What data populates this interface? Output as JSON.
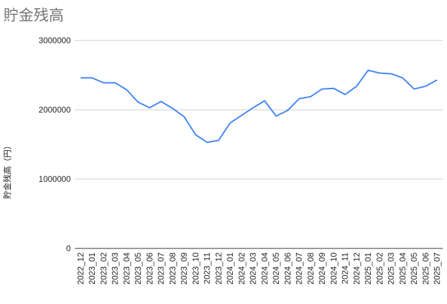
{
  "chart_data": {
    "type": "line",
    "title": "貯金残高",
    "y_label": "貯金残高（円）",
    "categories": [
      "2022_12",
      "2023_01",
      "2023_02",
      "2023_03",
      "2023_04",
      "2023_05",
      "2023_06",
      "2023_07",
      "2023_08",
      "2023_09",
      "2023_10",
      "2023_11",
      "2023_12",
      "2024_01",
      "2024_02",
      "2024_03",
      "2024_04",
      "2024_05",
      "2024_06",
      "2024_07",
      "2024_08",
      "2024_09",
      "2024_10",
      "2024_11",
      "2024_12",
      "2025_01",
      "2025_02",
      "2025_03",
      "2025_04",
      "2025_05",
      "2025_06",
      "2025_07"
    ],
    "values": [
      2460000,
      2460000,
      2390000,
      2390000,
      2290000,
      2110000,
      2030000,
      2120000,
      2020000,
      1900000,
      1640000,
      1530000,
      1560000,
      1810000,
      1920000,
      2030000,
      2130000,
      1910000,
      1990000,
      2160000,
      2190000,
      2300000,
      2310000,
      2220000,
      2340000,
      2570000,
      2530000,
      2520000,
      2460000,
      2300000,
      2340000,
      2430000
    ],
    "color": "#4285f4",
    "ylim": [
      0,
      3000000
    ],
    "yticks": [
      0,
      1000000,
      2000000,
      3000000
    ],
    "grid": true
  }
}
